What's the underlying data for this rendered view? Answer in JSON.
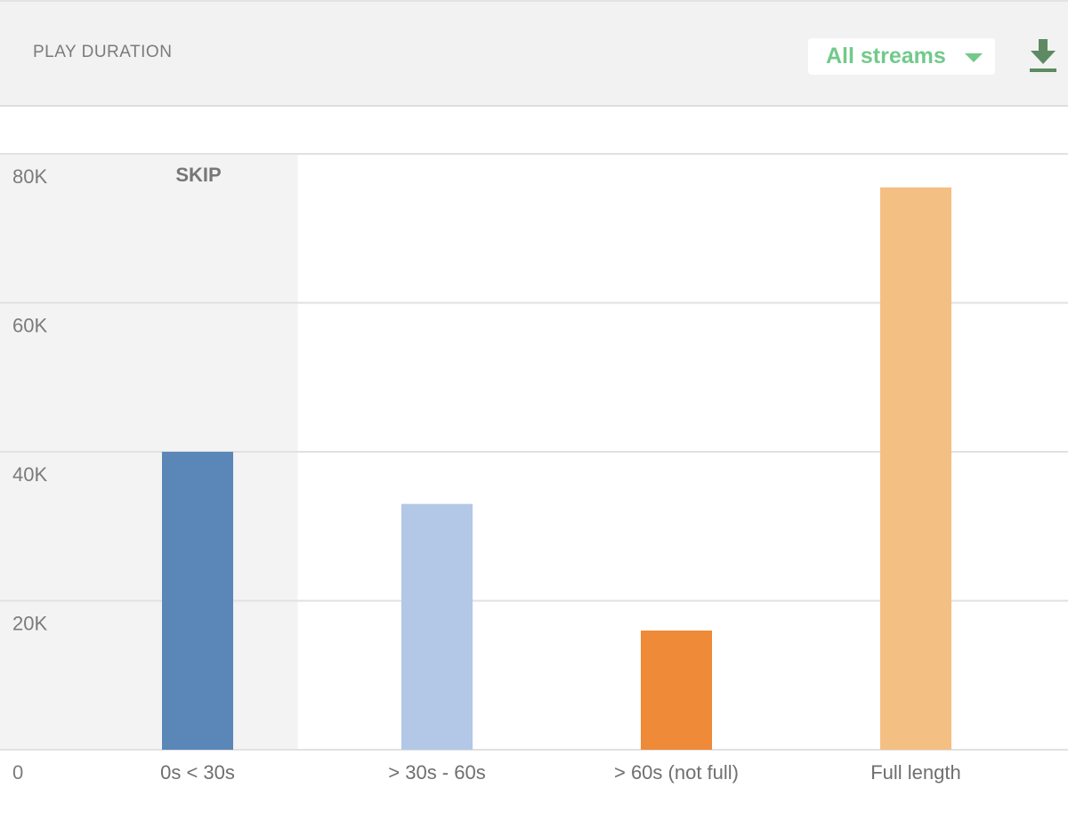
{
  "header": {
    "title": "PLAY DURATION",
    "stream_select": {
      "selected": "All streams"
    },
    "download_icon": "download-icon"
  },
  "colors": {
    "accent": "#72c98a",
    "download": "#5e8a63",
    "skip_zone": "#f3f3f3",
    "gridline": "#e1e1e1"
  },
  "chart_data": {
    "type": "bar",
    "categories": [
      "0s < 30s",
      "> 30s - 60s",
      "> 60s (not full)",
      "Full length"
    ],
    "values": [
      40000,
      33000,
      16000,
      75500
    ],
    "colors": [
      "#5a87b8",
      "#b3c7e6",
      "#ee8a38",
      "#f4bf83"
    ],
    "ylim": [
      0,
      80000
    ],
    "yticks": [
      20000,
      40000,
      60000,
      80000
    ],
    "ytick_labels": [
      "20K",
      "40K",
      "60K",
      "80K"
    ],
    "zero_label": "0",
    "annotation": {
      "label": "SKIP",
      "category_index": 0
    },
    "grid": true,
    "legend": "none"
  }
}
